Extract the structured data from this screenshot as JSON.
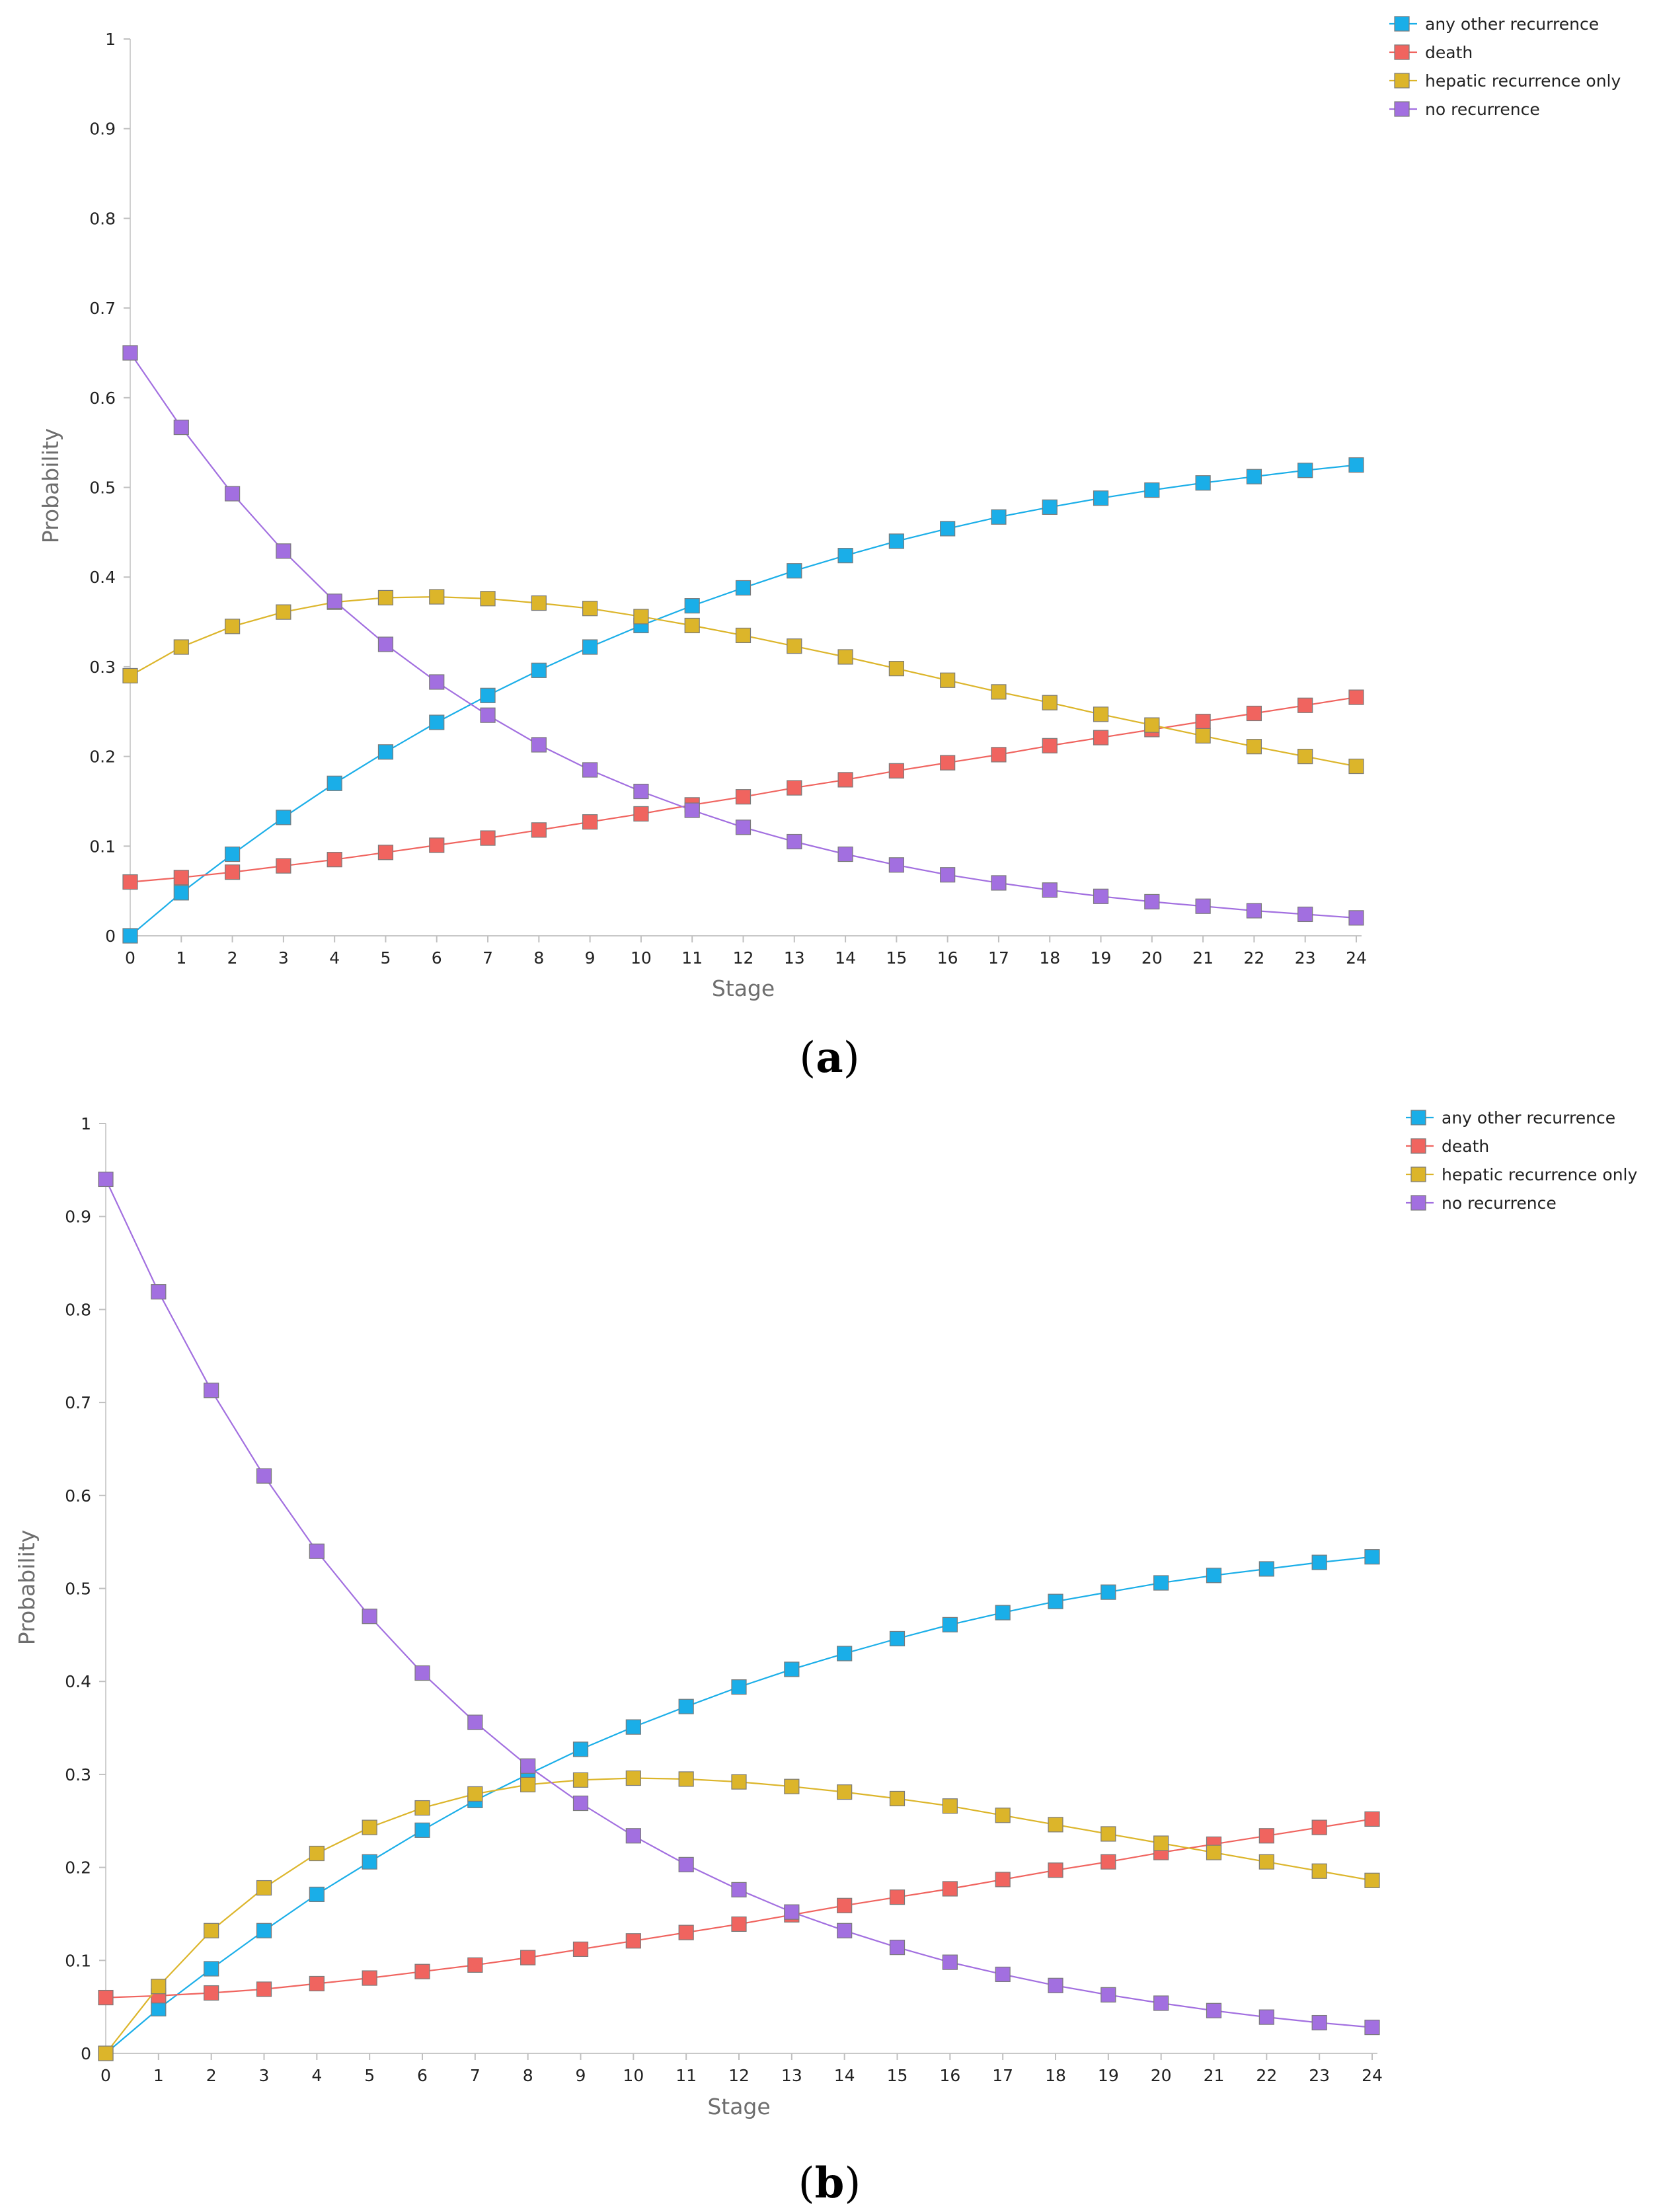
{
  "chart_data": [
    {
      "type": "line",
      "panel_label": "a",
      "title": "",
      "xlabel": "Stage",
      "ylabel": "Probability",
      "x": [
        0,
        1,
        2,
        3,
        4,
        5,
        6,
        7,
        8,
        9,
        10,
        11,
        12,
        13,
        14,
        15,
        16,
        17,
        18,
        19,
        20,
        21,
        22,
        23,
        24
      ],
      "xlim": [
        0,
        24
      ],
      "ylim": [
        0,
        1
      ],
      "yticks": [
        "0",
        "0.1",
        "0.2",
        "0.3",
        "0.4",
        "0.5",
        "0.6",
        "0.7",
        "0.8",
        "0.9",
        "1"
      ],
      "legend_position": "top-right",
      "series": [
        {
          "name": "any other recurrence",
          "color": "#1aaee8",
          "values": [
            0.0,
            0.048,
            0.091,
            0.132,
            0.17,
            0.205,
            0.238,
            0.268,
            0.296,
            0.322,
            0.346,
            0.368,
            0.388,
            0.407,
            0.424,
            0.44,
            0.454,
            0.467,
            0.478,
            0.488,
            0.497,
            0.505,
            0.512,
            0.519,
            0.525
          ]
        },
        {
          "name": "death",
          "color": "#f0645f",
          "values": [
            0.06,
            0.065,
            0.071,
            0.078,
            0.085,
            0.093,
            0.101,
            0.109,
            0.118,
            0.127,
            0.136,
            0.146,
            0.155,
            0.165,
            0.174,
            0.184,
            0.193,
            0.202,
            0.212,
            0.221,
            0.23,
            0.239,
            0.248,
            0.257,
            0.266
          ]
        },
        {
          "name": "hepatic recurrence only",
          "color": "#dcb52a",
          "values": [
            0.29,
            0.322,
            0.345,
            0.361,
            0.372,
            0.377,
            0.378,
            0.376,
            0.371,
            0.365,
            0.356,
            0.346,
            0.335,
            0.323,
            0.311,
            0.298,
            0.285,
            0.272,
            0.26,
            0.247,
            0.235,
            0.223,
            0.211,
            0.2,
            0.189
          ]
        },
        {
          "name": "no recurrence",
          "color": "#a26fe0",
          "values": [
            0.65,
            0.567,
            0.493,
            0.429,
            0.373,
            0.325,
            0.283,
            0.246,
            0.213,
            0.185,
            0.161,
            0.14,
            0.121,
            0.105,
            0.091,
            0.079,
            0.068,
            0.059,
            0.051,
            0.044,
            0.038,
            0.033,
            0.028,
            0.024,
            0.02
          ]
        }
      ]
    },
    {
      "type": "line",
      "panel_label": "b",
      "title": "",
      "xlabel": "Stage",
      "ylabel": "Probability",
      "x": [
        0,
        1,
        2,
        3,
        4,
        5,
        6,
        7,
        8,
        9,
        10,
        11,
        12,
        13,
        14,
        15,
        16,
        17,
        18,
        19,
        20,
        21,
        22,
        23,
        24
      ],
      "xlim": [
        0,
        24
      ],
      "ylim": [
        0,
        1
      ],
      "yticks": [
        "0",
        "0.1",
        "0.2",
        "0.3",
        "0.4",
        "0.5",
        "0.6",
        "0.7",
        "0.8",
        "0.9",
        "1"
      ],
      "legend_position": "top-right",
      "series": [
        {
          "name": "any other recurrence",
          "color": "#1aaee8",
          "values": [
            0.0,
            0.048,
            0.091,
            0.132,
            0.171,
            0.206,
            0.24,
            0.272,
            0.3,
            0.327,
            0.351,
            0.373,
            0.394,
            0.413,
            0.43,
            0.446,
            0.461,
            0.474,
            0.486,
            0.496,
            0.506,
            0.514,
            0.521,
            0.528,
            0.534
          ]
        },
        {
          "name": "death",
          "color": "#f0645f",
          "values": [
            0.06,
            0.062,
            0.065,
            0.069,
            0.075,
            0.081,
            0.088,
            0.095,
            0.103,
            0.112,
            0.121,
            0.13,
            0.139,
            0.149,
            0.159,
            0.168,
            0.177,
            0.187,
            0.197,
            0.206,
            0.216,
            0.225,
            0.234,
            0.243,
            0.252
          ]
        },
        {
          "name": "hepatic recurrence only",
          "color": "#dcb52a",
          "values": [
            0.0,
            0.072,
            0.132,
            0.178,
            0.215,
            0.243,
            0.264,
            0.279,
            0.289,
            0.294,
            0.296,
            0.295,
            0.292,
            0.287,
            0.281,
            0.274,
            0.266,
            0.256,
            0.246,
            0.236,
            0.226,
            0.216,
            0.206,
            0.196,
            0.186
          ]
        },
        {
          "name": "no recurrence",
          "color": "#a26fe0",
          "values": [
            0.94,
            0.819,
            0.713,
            0.621,
            0.54,
            0.47,
            0.409,
            0.356,
            0.309,
            0.269,
            0.234,
            0.203,
            0.176,
            0.152,
            0.132,
            0.114,
            0.098,
            0.085,
            0.073,
            0.063,
            0.054,
            0.046,
            0.039,
            0.033,
            0.028
          ]
        }
      ]
    }
  ]
}
